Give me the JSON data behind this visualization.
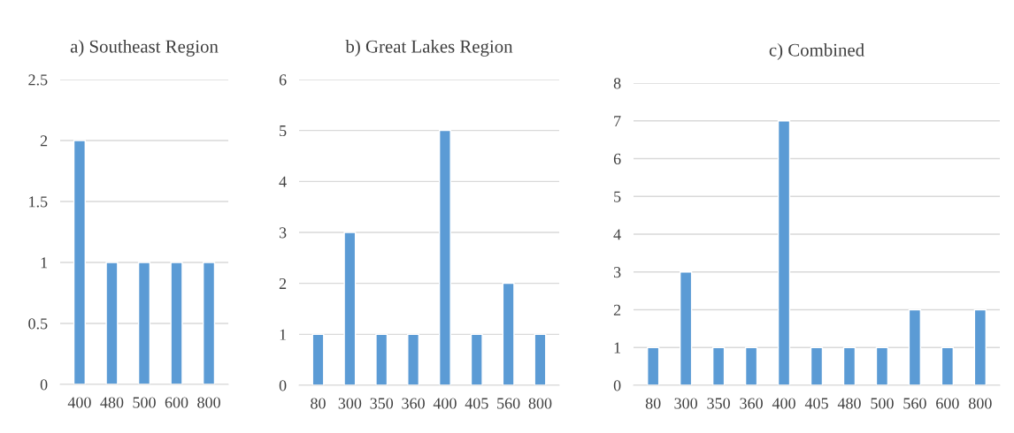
{
  "chart_data": [
    {
      "type": "bar",
      "title": "a) Southeast Region",
      "categories": [
        "400",
        "480",
        "500",
        "600",
        "800"
      ],
      "values": [
        2,
        1,
        1,
        1,
        1
      ],
      "color": "#5b9bd5",
      "ylim": [
        0,
        2.5
      ],
      "yticks": [
        0,
        0.5,
        1,
        1.5,
        2,
        2.5
      ],
      "grid": "y",
      "legend": false
    },
    {
      "type": "bar",
      "title": "b) Great Lakes Region",
      "categories": [
        "80",
        "300",
        "350",
        "360",
        "400",
        "405",
        "560",
        "800"
      ],
      "values": [
        1,
        3,
        1,
        1,
        5,
        1,
        2,
        1
      ],
      "color": "#5b9bd5",
      "ylim": [
        0,
        6
      ],
      "yticks": [
        0,
        1,
        2,
        3,
        4,
        5,
        6
      ],
      "grid": "y",
      "legend": false
    },
    {
      "type": "bar",
      "title": "c) Combined",
      "categories": [
        "80",
        "300",
        "350",
        "360",
        "400",
        "405",
        "480",
        "500",
        "560",
        "600",
        "800"
      ],
      "values": [
        1,
        3,
        1,
        1,
        7,
        1,
        1,
        1,
        2,
        1,
        2
      ],
      "color": "#5b9bd5",
      "ylim": [
        0,
        8
      ],
      "yticks": [
        0,
        1,
        2,
        3,
        4,
        5,
        6,
        7,
        8
      ],
      "grid": "y",
      "legend": false
    }
  ]
}
